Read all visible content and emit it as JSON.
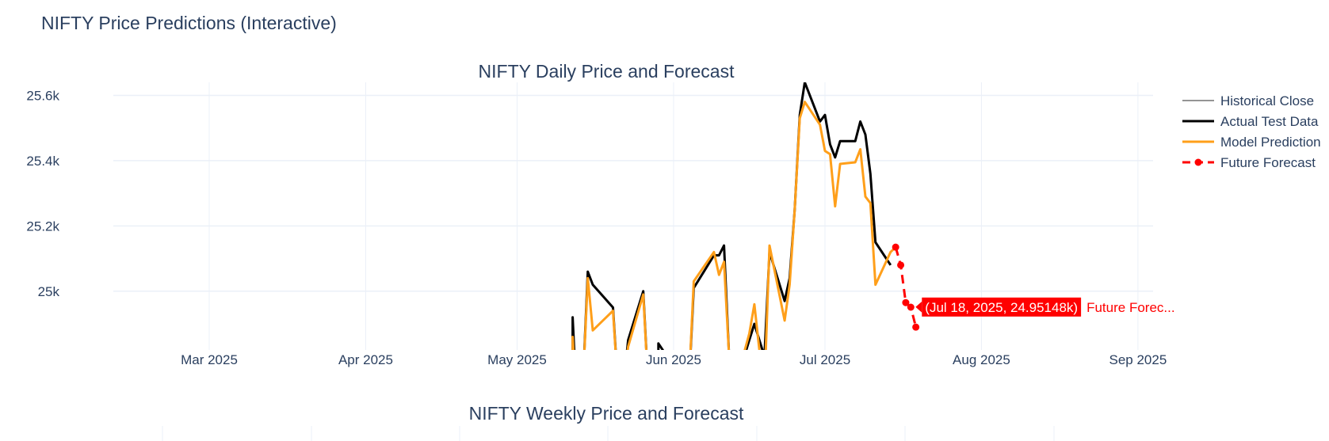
{
  "page": {
    "title": "NIFTY Price Predictions (Interactive)"
  },
  "chart_data": [
    {
      "type": "line",
      "title": "NIFTY Daily Price and Forecast",
      "xlabel": "",
      "ylabel": "",
      "x_axis": {
        "type": "date",
        "range": [
          "2025-02-10",
          "2025-09-04"
        ],
        "ticks": [
          {
            "date": "2025-03-01",
            "label": "Mar 2025"
          },
          {
            "date": "2025-04-01",
            "label": "Apr 2025"
          },
          {
            "date": "2025-05-01",
            "label": "May 2025"
          },
          {
            "date": "2025-06-01",
            "label": "Jun 2025"
          },
          {
            "date": "2025-07-01",
            "label": "Jul 2025"
          },
          {
            "date": "2025-08-01",
            "label": "Aug 2025"
          },
          {
            "date": "2025-09-01",
            "label": "Sep 2025"
          }
        ]
      },
      "y_axis": {
        "range": [
          24820,
          25640
        ],
        "ticks": [
          {
            "value": 25000,
            "label": "25k"
          },
          {
            "value": 25200,
            "label": "25.2k"
          },
          {
            "value": 25400,
            "label": "25.4k"
          },
          {
            "value": 25600,
            "label": "25.6k"
          }
        ]
      },
      "grid": true,
      "legend_position": "top-right",
      "series": [
        {
          "name": "Historical Close",
          "color": "#555555",
          "dash": "solid",
          "markers": false,
          "points": []
        },
        {
          "name": "Actual Test Data",
          "color": "#000000",
          "dash": "solid",
          "markers": false,
          "points": [
            [
              "2025-05-12",
              24700
            ],
            [
              "2025-05-12",
              24920
            ],
            [
              "2025-05-13",
              24600
            ],
            [
              "2025-05-14",
              24700
            ],
            [
              "2025-05-15",
              25060
            ],
            [
              "2025-05-16",
              25020
            ],
            [
              "2025-05-20",
              24950
            ],
            [
              "2025-05-21",
              24700
            ],
            [
              "2025-05-22",
              24700
            ],
            [
              "2025-05-23",
              24850
            ],
            [
              "2025-05-26",
              25000
            ],
            [
              "2025-05-27",
              24700
            ],
            [
              "2025-05-29",
              24700
            ],
            [
              "2025-05-29",
              24840
            ],
            [
              "2025-06-04",
              24700
            ],
            [
              "2025-06-05",
              25010
            ],
            [
              "2025-06-09",
              25110
            ],
            [
              "2025-06-10",
              25110
            ],
            [
              "2025-06-11",
              25140
            ],
            [
              "2025-06-12",
              24800
            ],
            [
              "2025-06-13",
              24700
            ],
            [
              "2025-06-16",
              24850
            ],
            [
              "2025-06-17",
              24900
            ],
            [
              "2025-06-18",
              24850
            ],
            [
              "2025-06-19",
              24800
            ],
            [
              "2025-06-20",
              25120
            ],
            [
              "2025-06-23",
              24970
            ],
            [
              "2025-06-24",
              25040
            ],
            [
              "2025-06-25",
              25250
            ],
            [
              "2025-06-26",
              25540
            ],
            [
              "2025-06-27",
              25640
            ],
            [
              "2025-06-30",
              25520
            ],
            [
              "2025-07-01",
              25540
            ],
            [
              "2025-07-02",
              25450
            ],
            [
              "2025-07-03",
              25410
            ],
            [
              "2025-07-04",
              25460
            ],
            [
              "2025-07-07",
              25460
            ],
            [
              "2025-07-08",
              25520
            ],
            [
              "2025-07-09",
              25480
            ],
            [
              "2025-07-10",
              25360
            ],
            [
              "2025-07-11",
              25150
            ],
            [
              "2025-07-14",
              25080
            ]
          ]
        },
        {
          "name": "Model Prediction",
          "color": "#ff9f1a",
          "dash": "solid",
          "markers": false,
          "points": [
            [
              "2025-05-12",
              24700
            ],
            [
              "2025-05-12",
              24860
            ],
            [
              "2025-05-13",
              24600
            ],
            [
              "2025-05-14",
              24700
            ],
            [
              "2025-05-15",
              25040
            ],
            [
              "2025-05-16",
              24880
            ],
            [
              "2025-05-20",
              24940
            ],
            [
              "2025-05-21",
              24700
            ],
            [
              "2025-05-22",
              24700
            ],
            [
              "2025-05-23",
              24830
            ],
            [
              "2025-05-26",
              24990
            ],
            [
              "2025-05-27",
              24700
            ],
            [
              "2025-06-04",
              24700
            ],
            [
              "2025-06-05",
              25030
            ],
            [
              "2025-06-09",
              25120
            ],
            [
              "2025-06-10",
              25050
            ],
            [
              "2025-06-11",
              25090
            ],
            [
              "2025-06-12",
              24800
            ],
            [
              "2025-06-13",
              24700
            ],
            [
              "2025-06-16",
              24870
            ],
            [
              "2025-06-17",
              24960
            ],
            [
              "2025-06-18",
              24820
            ],
            [
              "2025-06-19",
              24700
            ],
            [
              "2025-06-20",
              25140
            ],
            [
              "2025-06-23",
              24910
            ],
            [
              "2025-06-24",
              25020
            ],
            [
              "2025-06-25",
              25250
            ],
            [
              "2025-06-26",
              25530
            ],
            [
              "2025-06-27",
              25580
            ],
            [
              "2025-06-30",
              25510
            ],
            [
              "2025-07-01",
              25430
            ],
            [
              "2025-07-02",
              25420
            ],
            [
              "2025-07-03",
              25260
            ],
            [
              "2025-07-04",
              25390
            ],
            [
              "2025-07-07",
              25395
            ],
            [
              "2025-07-08",
              25435
            ],
            [
              "2025-07-09",
              25290
            ],
            [
              "2025-07-10",
              25270
            ],
            [
              "2025-07-11",
              25020
            ],
            [
              "2025-07-14",
              25120
            ],
            [
              "2025-07-15",
              25135
            ]
          ]
        },
        {
          "name": "Future Forecast",
          "color": "#ff0000",
          "dash": "dash",
          "markers": true,
          "points": [
            [
              "2025-07-15",
              25135
            ],
            [
              "2025-07-16",
              25080
            ],
            [
              "2025-07-17",
              24965
            ],
            [
              "2025-07-18",
              24951
            ],
            [
              "2025-07-19",
              24890
            ]
          ]
        }
      ],
      "annotation": {
        "date": "2025-07-18",
        "value": 24951.48,
        "text": "(Jul 18, 2025, 24.95148k)",
        "series_label": "Future Forec...",
        "color": "#ff0000"
      }
    },
    {
      "type": "line",
      "title": "NIFTY Weekly Price and Forecast"
    }
  ]
}
